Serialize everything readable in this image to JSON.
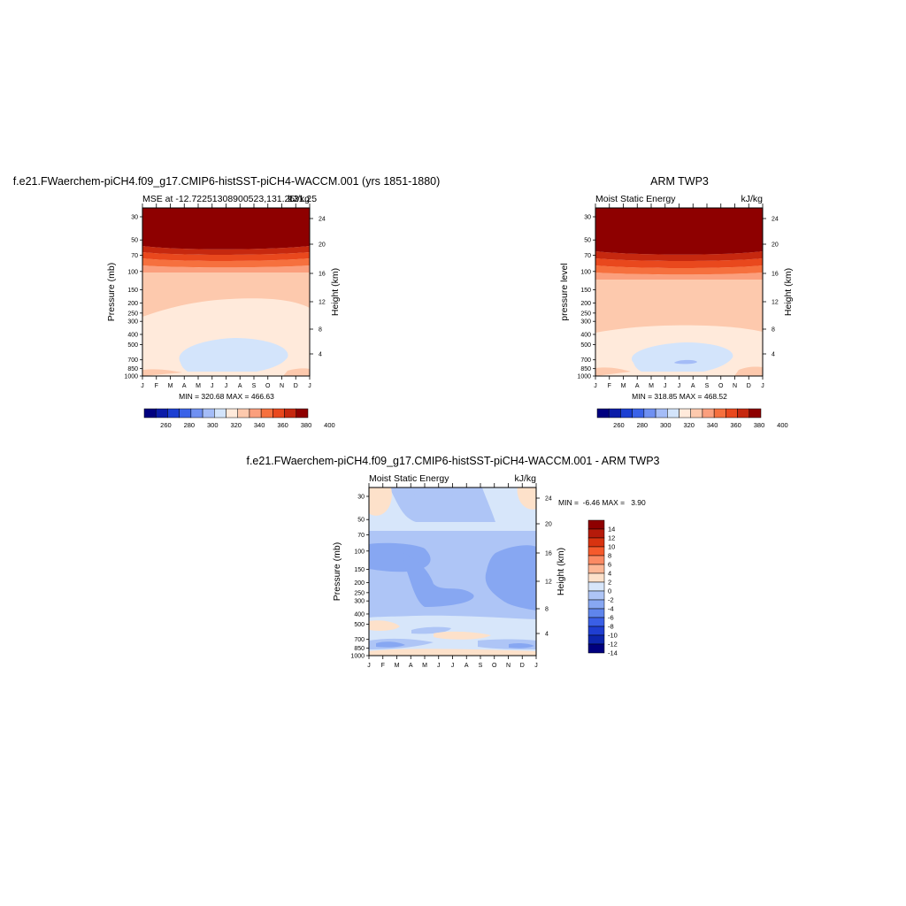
{
  "chart_data": [
    {
      "type": "heatmap",
      "title": "f.e21.FWaerchem-piCH4.f09_g17.CMIP6-histSST-piCH4-WACCM.001 (yrs 1851-1880)",
      "subtitle_left": "MSE at -12.72251308900523,131.25",
      "subtitle_overlap": "131.25",
      "units": "kJ/kg",
      "ylabel": "Pressure (mb)",
      "ylabel_right": "Height (km)",
      "x_ticks": [
        "J",
        "F",
        "M",
        "A",
        "M",
        "J",
        "J",
        "A",
        "S",
        "O",
        "N",
        "D",
        "J"
      ],
      "y_ticks": [
        "30",
        "50",
        "70",
        "100",
        "150",
        "200",
        "250",
        "300",
        "400",
        "500",
        "700",
        "850",
        "1000"
      ],
      "y_ticks_right": [
        "24",
        "20",
        "16",
        "12",
        "8",
        "4"
      ],
      "minmax": "MIN = 320.68 MAX = 466.63",
      "colorbar_labels": [
        "260",
        "280",
        "300",
        "320",
        "340",
        "360",
        "380",
        "400"
      ]
    },
    {
      "type": "heatmap",
      "title": "ARM TWP3",
      "subtitle_left": "Moist Static Energy",
      "units": "kJ/kg",
      "ylabel": "pressure level",
      "ylabel_right": "Height (km)",
      "x_ticks": [
        "J",
        "F",
        "M",
        "A",
        "M",
        "J",
        "J",
        "A",
        "S",
        "O",
        "N",
        "D",
        "J"
      ],
      "y_ticks": [
        "30",
        "50",
        "70",
        "100",
        "150",
        "200",
        "250",
        "300",
        "400",
        "500",
        "700",
        "850",
        "1000"
      ],
      "y_ticks_right": [
        "24",
        "20",
        "16",
        "12",
        "8",
        "4"
      ],
      "minmax": "MIN = 318.85 MAX = 468.52",
      "colorbar_labels": [
        "260",
        "280",
        "300",
        "320",
        "340",
        "360",
        "380",
        "400"
      ]
    },
    {
      "type": "heatmap",
      "title": "f.e21.FWaerchem-piCH4.f09_g17.CMIP6-histSST-piCH4-WACCM.001 - ARM TWP3",
      "subtitle_left": "Moist Static Energy",
      "units": "kJ/kg",
      "ylabel": "Pressure (mb)",
      "ylabel_right": "Height (km)",
      "x_ticks": [
        "J",
        "F",
        "M",
        "A",
        "M",
        "J",
        "J",
        "A",
        "S",
        "O",
        "N",
        "D",
        "J"
      ],
      "y_ticks": [
        "30",
        "50",
        "70",
        "100",
        "150",
        "200",
        "250",
        "300",
        "400",
        "500",
        "700",
        "850",
        "1000"
      ],
      "y_ticks_right": [
        "24",
        "20",
        "16",
        "12",
        "8",
        "4"
      ],
      "minmax": "MIN =  -6.46 MAX =   3.90",
      "colorbar_labels": [
        "14",
        "12",
        "10",
        "8",
        "6",
        "4",
        "2",
        "0",
        "-2",
        "-4",
        "-6",
        "-8",
        "-10",
        "-12",
        "-14"
      ]
    }
  ],
  "colors": {
    "mse_scale": [
      "#00007f",
      "#0b1ca8",
      "#1c3fd2",
      "#3a62e8",
      "#6f90f2",
      "#a4bcf7",
      "#d3e4fb",
      "#ffeadb",
      "#fdc9ad",
      "#fb9f7d",
      "#f6703e",
      "#e9481d",
      "#c6280f",
      "#8e0000"
    ],
    "diff_scale": [
      "#8e0000",
      "#b51a0a",
      "#d83310",
      "#f55a2c",
      "#fb8a63",
      "#fdb795",
      "#fde1ca",
      "#d7e6fa",
      "#aec5f6",
      "#87a7f2",
      "#5f85ec",
      "#3a5fe6",
      "#1f3ed1",
      "#0d25ad",
      "#00007f"
    ]
  }
}
